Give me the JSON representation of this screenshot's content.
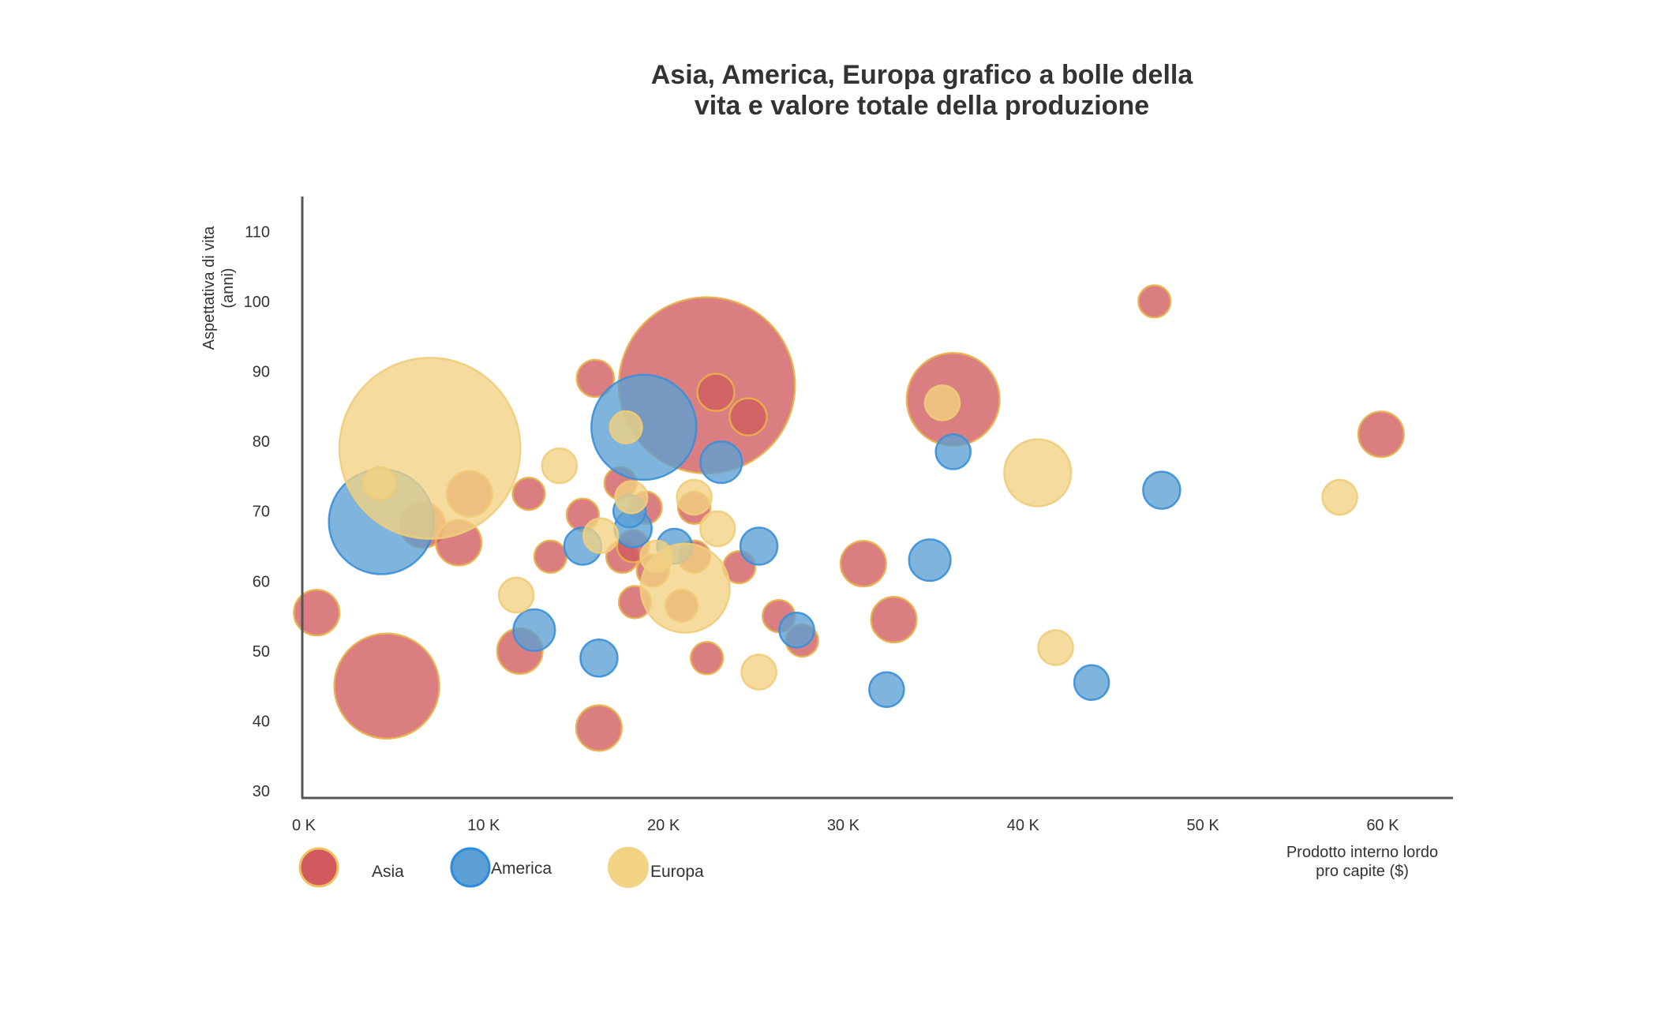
{
  "chart_data": {
    "type": "scatter",
    "title_lines": [
      "Asia, America, Europa grafico a bolle della",
      "vita e valore totale della produzione"
    ],
    "xlabel_lines": [
      "Prodotto interno lordo",
      "pro capite ($)"
    ],
    "ylabel_lines": [
      "Aspettativa di vita",
      "(anni)"
    ],
    "x_tick_labels": [
      "0 K",
      "10 K",
      "20 K",
      "30 K",
      "40 K",
      "50 K",
      "60 K"
    ],
    "x_ticks": [
      0,
      10000,
      20000,
      30000,
      40000,
      50000,
      60000
    ],
    "y_ticks": [
      30,
      40,
      50,
      60,
      70,
      80,
      90,
      100,
      110
    ],
    "xlim": [
      0,
      64000
    ],
    "ylim": [
      29,
      115
    ],
    "grid": false,
    "legend_position": "bottom-left",
    "series": [
      {
        "name": "Asia",
        "fill": "#d05a5e",
        "stroke": "#e8b04a",
        "points": [
          {
            "x": 22500,
            "y": 88,
            "size": 9
          },
          {
            "x": 4700,
            "y": 45,
            "size": 3.2
          },
          {
            "x": 36200,
            "y": 86,
            "size": 2.5
          },
          {
            "x": 800,
            "y": 55.5,
            "size": 0.6
          },
          {
            "x": 6700,
            "y": 68,
            "size": 0.6
          },
          {
            "x": 8700,
            "y": 65.5,
            "size": 0.6
          },
          {
            "x": 9300,
            "y": 72.5,
            "size": 0.6
          },
          {
            "x": 12100,
            "y": 50,
            "size": 0.6
          },
          {
            "x": 16500,
            "y": 39,
            "size": 0.6
          },
          {
            "x": 31200,
            "y": 62.5,
            "size": 0.6
          },
          {
            "x": 32900,
            "y": 54.5,
            "size": 0.6
          },
          {
            "x": 60000,
            "y": 81,
            "size": 0.6
          },
          {
            "x": 16300,
            "y": 89,
            "size": 0.4
          },
          {
            "x": 23000,
            "y": 87,
            "size": 0.4
          },
          {
            "x": 24800,
            "y": 83.5,
            "size": 0.4
          },
          {
            "x": 47400,
            "y": 100,
            "size": 0.3
          },
          {
            "x": 12600,
            "y": 72.5,
            "size": 0.3
          },
          {
            "x": 13800,
            "y": 63.5,
            "size": 0.3
          },
          {
            "x": 15600,
            "y": 69.5,
            "size": 0.3
          },
          {
            "x": 17700,
            "y": 74,
            "size": 0.3
          },
          {
            "x": 17800,
            "y": 63.5,
            "size": 0.3
          },
          {
            "x": 18400,
            "y": 65,
            "size": 0.3
          },
          {
            "x": 18500,
            "y": 57,
            "size": 0.3
          },
          {
            "x": 19100,
            "y": 70.5,
            "size": 0.3
          },
          {
            "x": 19500,
            "y": 61.5,
            "size": 0.3
          },
          {
            "x": 21100,
            "y": 56.5,
            "size": 0.3
          },
          {
            "x": 21800,
            "y": 63.5,
            "size": 0.3
          },
          {
            "x": 21800,
            "y": 70.5,
            "size": 0.3
          },
          {
            "x": 22500,
            "y": 49,
            "size": 0.3
          },
          {
            "x": 24300,
            "y": 62,
            "size": 0.3
          },
          {
            "x": 26500,
            "y": 55,
            "size": 0.3
          },
          {
            "x": 27800,
            "y": 51.5,
            "size": 0.3
          }
        ]
      },
      {
        "name": "America",
        "fill": "#5b9fd4",
        "stroke": "#3a8fd8",
        "points": [
          {
            "x": 4400,
            "y": 68.5,
            "size": 3.2
          },
          {
            "x": 19000,
            "y": 82,
            "size": 3.2
          },
          {
            "x": 23300,
            "y": 77,
            "size": 0.5
          },
          {
            "x": 34900,
            "y": 63,
            "size": 0.5
          },
          {
            "x": 12900,
            "y": 53,
            "size": 0.5
          },
          {
            "x": 15600,
            "y": 65,
            "size": 0.4
          },
          {
            "x": 16500,
            "y": 49,
            "size": 0.4
          },
          {
            "x": 18400,
            "y": 67.5,
            "size": 0.4
          },
          {
            "x": 18200,
            "y": 70,
            "size": 0.3
          },
          {
            "x": 20700,
            "y": 65,
            "size": 0.35
          },
          {
            "x": 25400,
            "y": 65,
            "size": 0.4
          },
          {
            "x": 27500,
            "y": 53,
            "size": 0.35
          },
          {
            "x": 32500,
            "y": 44.5,
            "size": 0.35
          },
          {
            "x": 36200,
            "y": 78.5,
            "size": 0.35
          },
          {
            "x": 43900,
            "y": 45.5,
            "size": 0.35
          },
          {
            "x": 47800,
            "y": 73,
            "size": 0.4
          }
        ]
      },
      {
        "name": "Europa",
        "fill": "#f2d283",
        "stroke": "#f0cc78",
        "points": [
          {
            "x": 7100,
            "y": 79,
            "size": 9.5
          },
          {
            "x": 21300,
            "y": 59,
            "size": 2.3
          },
          {
            "x": 40900,
            "y": 75.5,
            "size": 1.3
          },
          {
            "x": 4300,
            "y": 74,
            "size": 0.3
          },
          {
            "x": 11900,
            "y": 58,
            "size": 0.35
          },
          {
            "x": 14300,
            "y": 76.5,
            "size": 0.35
          },
          {
            "x": 16600,
            "y": 66.5,
            "size": 0.35
          },
          {
            "x": 18000,
            "y": 82,
            "size": 0.3
          },
          {
            "x": 18300,
            "y": 72,
            "size": 0.3
          },
          {
            "x": 19700,
            "y": 63.5,
            "size": 0.3
          },
          {
            "x": 21800,
            "y": 72,
            "size": 0.35
          },
          {
            "x": 23100,
            "y": 67.5,
            "size": 0.35
          },
          {
            "x": 25400,
            "y": 47,
            "size": 0.35
          },
          {
            "x": 35600,
            "y": 85.5,
            "size": 0.35
          },
          {
            "x": 41900,
            "y": 50.5,
            "size": 0.35
          },
          {
            "x": 57700,
            "y": 72,
            "size": 0.35
          }
        ]
      }
    ]
  }
}
